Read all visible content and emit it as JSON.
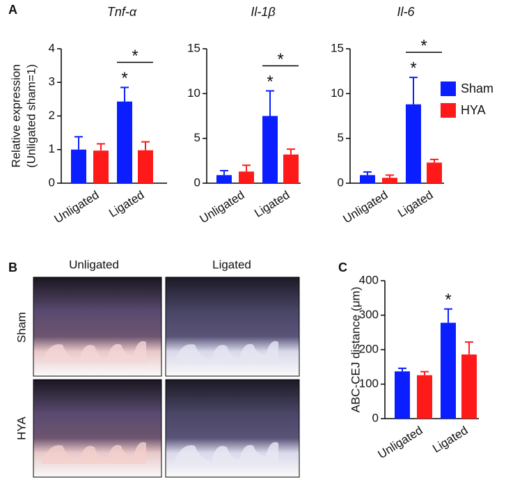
{
  "panels": [
    "A",
    "B",
    "C"
  ],
  "legend": [
    {
      "name": "Sham",
      "color": "#0a1eff"
    },
    {
      "name": "HYA",
      "color": "#ff1a1a"
    }
  ],
  "photos": {
    "columns": [
      "Unligated",
      "Ligated"
    ],
    "rows": [
      "Sham",
      "HYA"
    ]
  },
  "chart_data": [
    {
      "type": "bar",
      "title": "Tnf-α",
      "ylabel": [
        "Relative expression",
        "(Unligated sham=1)"
      ],
      "categories": [
        "Unligated",
        "Ligated"
      ],
      "series": [
        {
          "values": [
            1.0,
            2.43
          ],
          "errors": [
            0.38,
            0.42
          ]
        },
        {
          "values": [
            0.97,
            0.98
          ],
          "errors": [
            0.2,
            0.25
          ]
        }
      ],
      "ylim": [
        0,
        4
      ],
      "yticks": [
        0,
        1,
        2,
        3,
        4
      ],
      "annotations": [
        {
          "text": "*",
          "series": "Sham",
          "category": "Ligated"
        },
        {
          "text": "*",
          "bracket": "Ligated"
        }
      ]
    },
    {
      "type": "bar",
      "title": "Il-1β",
      "categories": [
        "Unligated",
        "Ligated"
      ],
      "series": [
        {
          "values": [
            0.9,
            7.5
          ],
          "errors": [
            0.5,
            2.8
          ]
        },
        {
          "values": [
            1.3,
            3.2
          ],
          "errors": [
            0.7,
            0.6
          ]
        }
      ],
      "ylim": [
        0,
        15
      ],
      "yticks": [
        0,
        5,
        10,
        15
      ],
      "annotations": [
        {
          "text": "*",
          "series": "Sham",
          "category": "Ligated"
        },
        {
          "text": "*",
          "bracket": "Ligated"
        }
      ]
    },
    {
      "type": "bar",
      "title": "Il-6",
      "categories": [
        "Unligated",
        "Ligated"
      ],
      "series": [
        {
          "values": [
            0.9,
            8.8
          ],
          "errors": [
            0.35,
            3.0
          ]
        },
        {
          "values": [
            0.6,
            2.3
          ],
          "errors": [
            0.3,
            0.35
          ]
        }
      ],
      "ylim": [
        0,
        15
      ],
      "yticks": [
        0,
        5,
        10,
        15
      ],
      "annotations": [
        {
          "text": "*",
          "series": "Sham",
          "category": "Ligated"
        },
        {
          "text": "*",
          "bracket": "Ligated"
        }
      ]
    },
    {
      "type": "bar",
      "ylabel": [
        "ABC-CEJ distance (μm)"
      ],
      "categories": [
        "Unligated",
        "Ligated"
      ],
      "series": [
        {
          "values": [
            137,
            278
          ],
          "errors": [
            9,
            40
          ]
        },
        {
          "values": [
            126,
            186
          ],
          "errors": [
            10,
            36
          ]
        }
      ],
      "ylim": [
        0,
        400
      ],
      "yticks": [
        0,
        100,
        200,
        300,
        400
      ],
      "annotations": [
        {
          "text": "*",
          "series": "Sham",
          "category": "Ligated"
        }
      ]
    }
  ]
}
